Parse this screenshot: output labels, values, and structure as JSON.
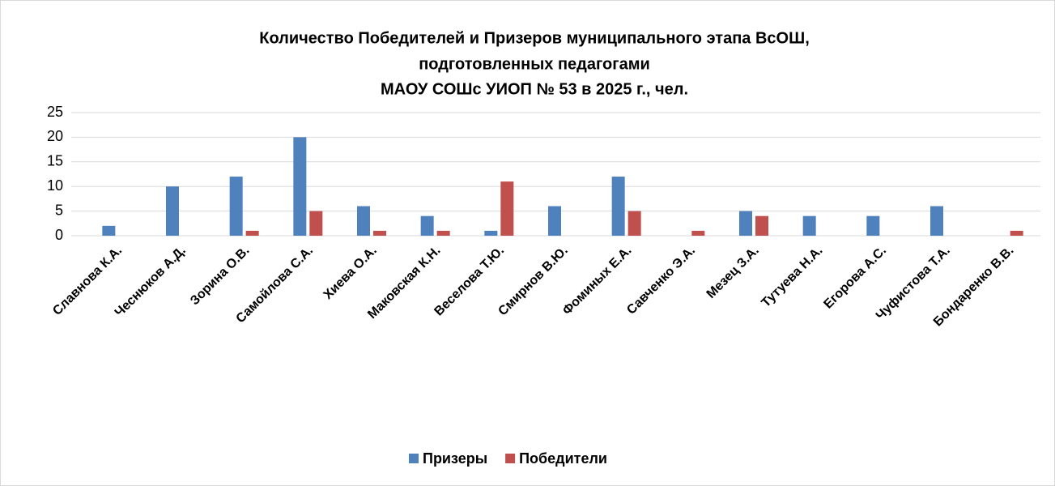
{
  "chart_data": {
    "type": "bar",
    "title": [
      "Количество Победителей и Призеров муниципального этапа ВсОШ,",
      "подготовленных педагогами",
      "МАОУ СОШс УИОП № 53 в 2025 г., чел."
    ],
    "categories": [
      "Славнова К.А.",
      "Чеснюков А.Д.",
      "Зорина О.В.",
      "Самойлова С.А.",
      "Хиева О.А.",
      "Маковская К.Н.",
      "Веселова Т.Ю.",
      "Смирнов В.Ю.",
      "Фоминых Е.А.",
      "Савченко Э.А.",
      "Мезец З.А.",
      "Тутуева Н.А.",
      "Егорова А.С.",
      "Чуфистова Т.А.",
      "Бондаренко В.В."
    ],
    "series": [
      {
        "name": "Призеры",
        "color": "#4f81bd",
        "values": [
          2,
          10,
          12,
          20,
          6,
          4,
          1,
          6,
          12,
          0,
          5,
          4,
          4,
          6,
          0
        ]
      },
      {
        "name": "Победители",
        "color": "#c0504d",
        "values": [
          0,
          0,
          1,
          5,
          1,
          1,
          11,
          0,
          5,
          1,
          4,
          0,
          0,
          0,
          1
        ]
      }
    ],
    "ylim": [
      0,
      25
    ],
    "yticks": [
      0,
      5,
      10,
      15,
      20,
      25
    ],
    "grid": true,
    "legend": "bottom"
  }
}
